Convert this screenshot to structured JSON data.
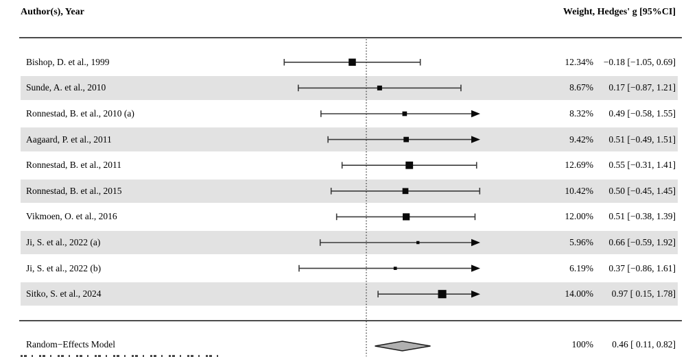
{
  "header": {
    "left": "Author(s), Year",
    "right": "Weight, Hedges' g [95%CI]"
  },
  "summary": {
    "label": "Random−Effects Model",
    "weight_text": "100%",
    "estimate_text": "0.46 [ 0.11, 0.82]",
    "g": 0.46,
    "ci_low": 0.11,
    "ci_high": 0.82
  },
  "chart_data": {
    "type": "forest",
    "effect_measure": "Hedges' g",
    "xlim": [
      -1.15,
      1.46
    ],
    "zero_line": 0,
    "legend_position": "none",
    "grid": false,
    "studies": [
      {
        "label": "Bishop, D. et al., 1999",
        "weight_pct": 12.34,
        "weight_text": "12.34%",
        "g": -0.18,
        "ci_low": -1.05,
        "ci_high": 0.69,
        "estimate_text": "−0.18 [−1.05, 0.69]"
      },
      {
        "label": "Sunde, A. et al., 2010",
        "weight_pct": 8.67,
        "weight_text": "8.67%",
        "g": 0.17,
        "ci_low": -0.87,
        "ci_high": 1.21,
        "estimate_text": "0.17 [−0.87, 1.21]"
      },
      {
        "label": "Ronnestad, B. et al., 2010 (a)",
        "weight_pct": 8.32,
        "weight_text": "8.32%",
        "g": 0.49,
        "ci_low": -0.58,
        "ci_high": 1.55,
        "estimate_text": "0.49 [−0.58, 1.55]"
      },
      {
        "label": "Aagaard, P. et al., 2011",
        "weight_pct": 9.42,
        "weight_text": "9.42%",
        "g": 0.51,
        "ci_low": -0.49,
        "ci_high": 1.51,
        "estimate_text": "0.51 [−0.49, 1.51]"
      },
      {
        "label": "Ronnestad, B. et al., 2011",
        "weight_pct": 12.69,
        "weight_text": "12.69%",
        "g": 0.55,
        "ci_low": -0.31,
        "ci_high": 1.41,
        "estimate_text": "0.55 [−0.31, 1.41]"
      },
      {
        "label": "Ronnestad, B. et al., 2015",
        "weight_pct": 10.42,
        "weight_text": "10.42%",
        "g": 0.5,
        "ci_low": -0.45,
        "ci_high": 1.45,
        "estimate_text": "0.50 [−0.45, 1.45]"
      },
      {
        "label": "Vikmoen, O. et al., 2016",
        "weight_pct": 12.0,
        "weight_text": "12.00%",
        "g": 0.51,
        "ci_low": -0.38,
        "ci_high": 1.39,
        "estimate_text": "0.51 [−0.38, 1.39]"
      },
      {
        "label": "Ji, S. et al., 2022 (a)",
        "weight_pct": 5.96,
        "weight_text": "5.96%",
        "g": 0.66,
        "ci_low": -0.59,
        "ci_high": 1.92,
        "estimate_text": "0.66 [−0.59, 1.92]"
      },
      {
        "label": "Ji, S. et al., 2022 (b)",
        "weight_pct": 6.19,
        "weight_text": "6.19%",
        "g": 0.37,
        "ci_low": -0.86,
        "ci_high": 1.61,
        "estimate_text": "0.37 [−0.86, 1.61]"
      },
      {
        "label": "Sitko, S. et al., 2024",
        "weight_pct": 14.0,
        "weight_text": "14.00%",
        "g": 0.97,
        "ci_low": 0.15,
        "ci_high": 1.78,
        "estimate_text": "0.97 [ 0.15, 1.78]"
      }
    ],
    "summary": {
      "label": "Random−Effects Model",
      "weight_pct": 100,
      "g": 0.46,
      "ci_low": 0.11,
      "ci_high": 0.82
    }
  },
  "colors": {
    "stripe": "#e2e2e2",
    "text": "#000000",
    "ci_line": "#3a3a3a",
    "marker": "#0a0a0a",
    "diamond_fill": "#b0b0b0",
    "diamond_stroke": "#1a1a1a",
    "rule": "#4a4a4a",
    "zero_line": "#333333"
  }
}
